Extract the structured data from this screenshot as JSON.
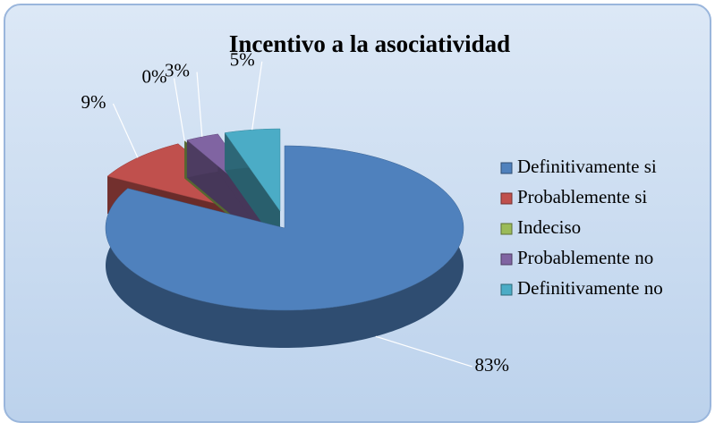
{
  "chart_data": {
    "type": "pie",
    "title": "Incentivo a la asociatividad",
    "categories": [
      "Definitivamente si",
      "Probablemente si",
      "Indeciso",
      "Probablemente no",
      "Definitivamente no"
    ],
    "values": [
      83,
      9,
      0,
      3,
      5
    ],
    "value_labels": [
      "83%",
      "9%",
      "0%",
      "3%",
      "5%"
    ],
    "colors": [
      "#4f81bd",
      "#c0504d",
      "#9bbb59",
      "#8064a2",
      "#4bacc6"
    ],
    "legend": "right"
  }
}
